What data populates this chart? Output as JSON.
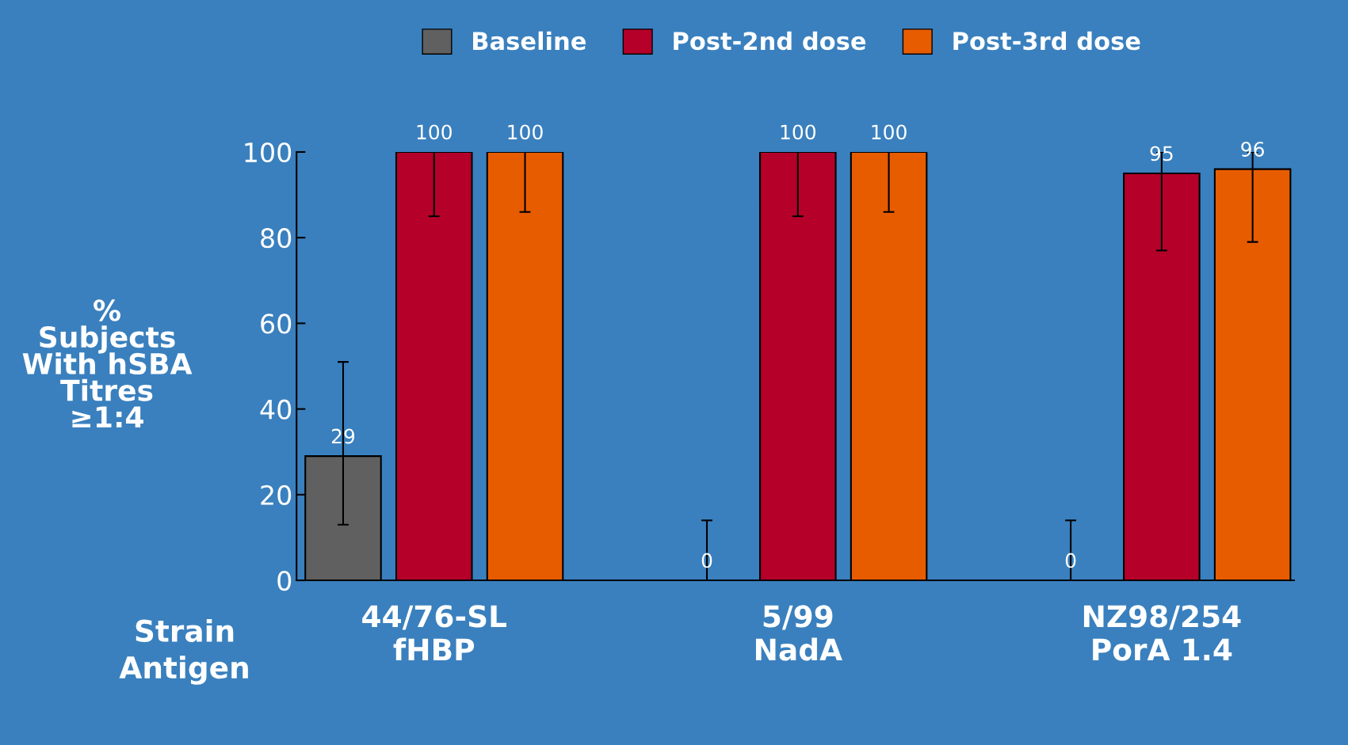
{
  "chart_data": {
    "type": "bar",
    "categories": [
      "44/76-SL\nfHBP",
      "5/99\nNadA",
      "NZ98/254\nPorA 1.4"
    ],
    "ylabel": "%\nSubjects\nWith hSBA\nTitres\n≥1:4",
    "series": [
      {
        "name": "Baseline",
        "color": "#606060",
        "values": [
          29,
          0,
          0
        ],
        "errors": [
          [
            13,
            51
          ],
          [
            0,
            14
          ],
          [
            0,
            14
          ]
        ]
      },
      {
        "name": "Post-2nd dose",
        "color": "#b5002a",
        "values": [
          100,
          100,
          95
        ],
        "errors": [
          [
            85,
            100
          ],
          [
            85,
            100
          ],
          [
            77,
            100
          ]
        ]
      },
      {
        "name": "Post-3rd dose",
        "color": "#e85c00",
        "values": [
          100,
          100,
          96
        ],
        "errors": [
          [
            86,
            100
          ],
          [
            86,
            100
          ],
          [
            79,
            100
          ]
        ]
      }
    ],
    "ylim": [
      0,
      100
    ],
    "yticks": [
      0,
      20,
      40,
      60,
      80,
      100
    ],
    "data_labels": true,
    "legend": "top",
    "grid": false,
    "annotations": [
      "Strain\nAntigen"
    ]
  }
}
